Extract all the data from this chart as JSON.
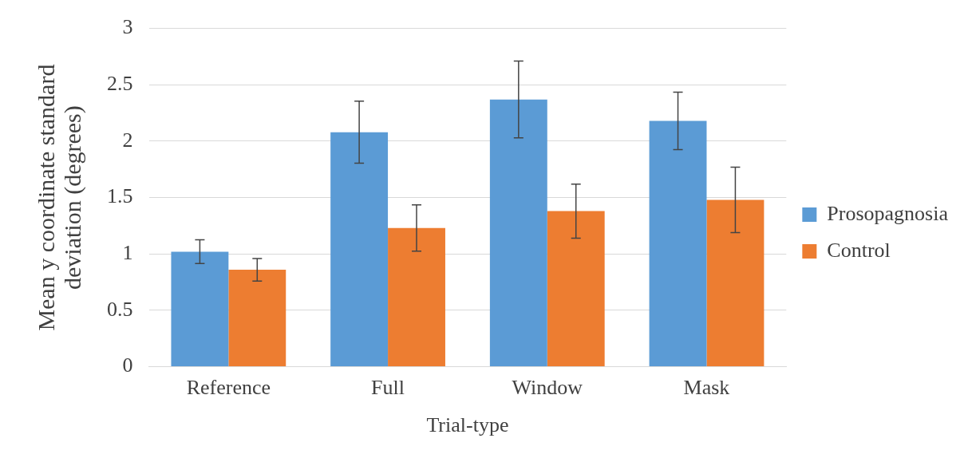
{
  "chart_data": {
    "type": "bar",
    "xlabel": "Trial-type",
    "ylabel": "Mean y coordinate standard deviation (degrees)",
    "categories": [
      "Reference",
      "Full",
      "Window",
      "Mask"
    ],
    "series": [
      {
        "name": "Prosopagnosia",
        "color": "#5b9bd5",
        "values": [
          1.02,
          2.08,
          2.37,
          2.18
        ],
        "errors": [
          0.105,
          0.275,
          0.34,
          0.255
        ]
      },
      {
        "name": "Control",
        "color": "#ed7d31",
        "values": [
          0.86,
          1.23,
          1.38,
          1.48
        ],
        "errors": [
          0.1,
          0.205,
          0.24,
          0.29
        ]
      }
    ],
    "ylim": [
      0,
      3
    ],
    "yticks": [
      0,
      0.5,
      1,
      1.5,
      2,
      2.5,
      3
    ],
    "grid": "y",
    "legend": "right"
  }
}
